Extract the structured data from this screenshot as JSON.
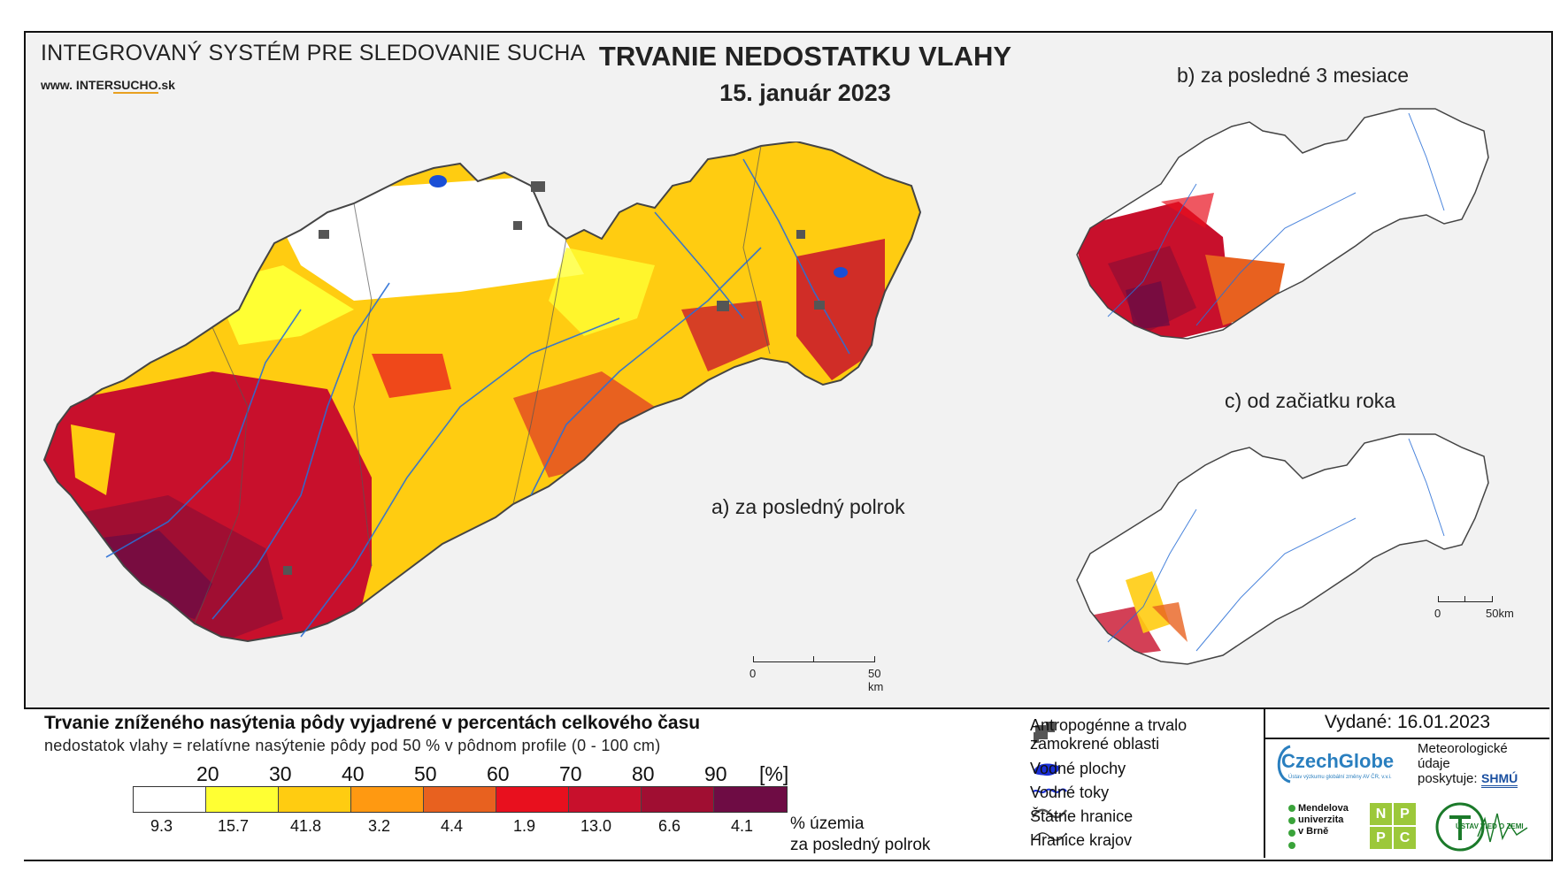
{
  "header": {
    "system_title": "INTEGROVANÝ SYSTÉM PRE SLEDOVANIE SUCHA",
    "website_prefix": "www. INTER",
    "website_mid": "SUCHO",
    "website_suffix": ".sk",
    "title": "TRVANIE NEDOSTATKU VLAHY",
    "date": "15. január 2023"
  },
  "panels": {
    "a": {
      "label": "a) za posledný polrok",
      "scale": {
        "zero": "0",
        "end": "50 km"
      }
    },
    "b": {
      "label": "b) za posledné 3 mesiace"
    },
    "c": {
      "label": "c) od začiatku roka",
      "scale": {
        "zero": "0",
        "end": "50km"
      }
    }
  },
  "legend": {
    "title": "Trvanie zníženého nasýtenia pôdy vyjadrené v percentách celkového času",
    "subtitle": "nedostatok vlahy = relatívne nasýtenie pôdy pod 50 % v pôdnom profile (0 - 100 cm)",
    "ticks": [
      "20",
      "30",
      "40",
      "50",
      "60",
      "70",
      "80",
      "90",
      "[%]"
    ],
    "classes": [
      {
        "color": "#ffffff",
        "share": "9.3"
      },
      {
        "color": "#ffff33",
        "share": "15.7"
      },
      {
        "color": "#ffcc11",
        "share": "41.8"
      },
      {
        "color": "#ff9911",
        "share": "3.2"
      },
      {
        "color": "#e8611f",
        "share": "4.4"
      },
      {
        "color": "#e8101e",
        "share": "1.9"
      },
      {
        "color": "#c8102c",
        "share": "13.0"
      },
      {
        "color": "#a00e32",
        "share": "6.6"
      },
      {
        "color": "#6e0c44",
        "share": "4.1"
      }
    ],
    "share_note_line1": "% územia",
    "share_note_line2": "za posledný polrok"
  },
  "key": {
    "anthropogenic_line1": "Antropogénne a trvalo",
    "anthropogenic_line2": "zamokrené oblasti",
    "water_bodies": "Vodné plochy",
    "streams": "Vodné toky",
    "state_border": "Štátne hranice",
    "region_border": "Hranice krajov"
  },
  "credits": {
    "issued": "Vydané: 16.01.2023",
    "czechglobe": "CzechGlobe",
    "czechglobe_sub": "Ústav výzkumu globální změny AV ČR, v.v.i.",
    "meteo_line1": "Meteorologické",
    "meteo_line2": "údaje",
    "meteo_line3": "poskytuje:",
    "shmu": "SHMÚ",
    "mendel_line1": "Mendelova",
    "mendel_line2": "univerzita",
    "mendel_line3": "v Brně",
    "nppc": [
      "N",
      "P",
      "P",
      "C"
    ],
    "uvz": "ÚSTAV VIED O ZEMI"
  }
}
